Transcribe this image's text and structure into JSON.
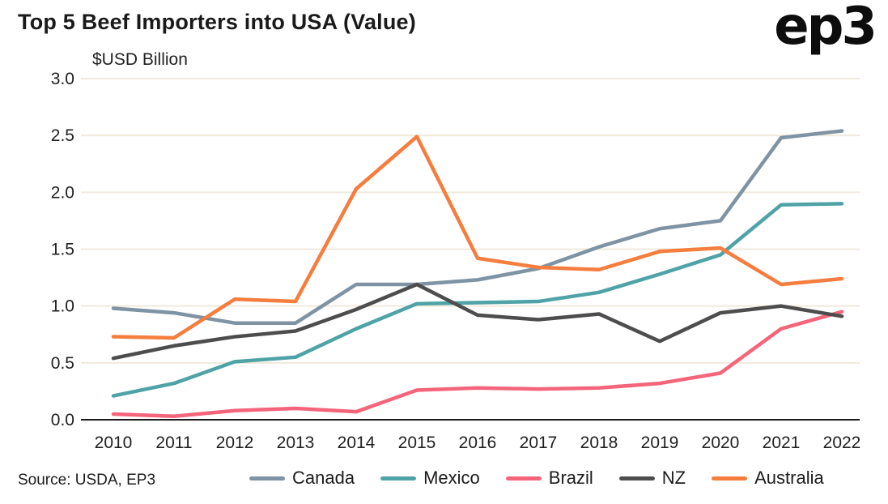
{
  "header": {
    "title": "Top 5 Beef Importers into USA (Value)",
    "logo_text": "ep3"
  },
  "footer": {
    "source": "Source: USDA, EP3"
  },
  "chart_data": {
    "type": "line",
    "title": "Top 5 Beef Importers into USA (Value)",
    "subtitle": "$USD Billion",
    "ylabel": "$USD Billion",
    "xlabel": "",
    "ylim": [
      0.0,
      3.0
    ],
    "yticks": [
      0.0,
      0.5,
      1.0,
      1.5,
      2.0,
      2.5,
      3.0
    ],
    "grid": true,
    "legend_position": "bottom",
    "x": [
      2010,
      2011,
      2012,
      2013,
      2014,
      2015,
      2016,
      2017,
      2018,
      2019,
      2020,
      2021,
      2022
    ],
    "series": [
      {
        "name": "Canada",
        "color": "#7e93a3",
        "values": [
          0.98,
          0.94,
          0.85,
          0.85,
          1.19,
          1.19,
          1.23,
          1.33,
          1.52,
          1.68,
          1.75,
          2.48,
          2.54
        ]
      },
      {
        "name": "Mexico",
        "color": "#4fa3a6",
        "values": [
          0.21,
          0.32,
          0.51,
          0.55,
          0.8,
          1.02,
          1.03,
          1.04,
          1.12,
          1.28,
          1.45,
          1.89,
          1.9
        ]
      },
      {
        "name": "Brazil",
        "color": "#f4657b",
        "values": [
          0.05,
          0.03,
          0.08,
          0.1,
          0.07,
          0.26,
          0.28,
          0.27,
          0.28,
          0.32,
          0.41,
          0.8,
          0.95
        ]
      },
      {
        "name": "NZ",
        "color": "#4d4d4d",
        "values": [
          0.54,
          0.65,
          0.73,
          0.78,
          0.97,
          1.19,
          0.92,
          0.88,
          0.93,
          0.69,
          0.94,
          1.0,
          0.91
        ]
      },
      {
        "name": "Australia",
        "color": "#f57d3d",
        "values": [
          0.73,
          0.72,
          1.06,
          1.04,
          2.03,
          2.49,
          1.42,
          1.34,
          1.32,
          1.48,
          1.51,
          1.19,
          1.24
        ]
      }
    ],
    "colors": {
      "grid": "#f0e9dc",
      "axis": "#1a1a1a",
      "background": "#ffffff"
    }
  }
}
